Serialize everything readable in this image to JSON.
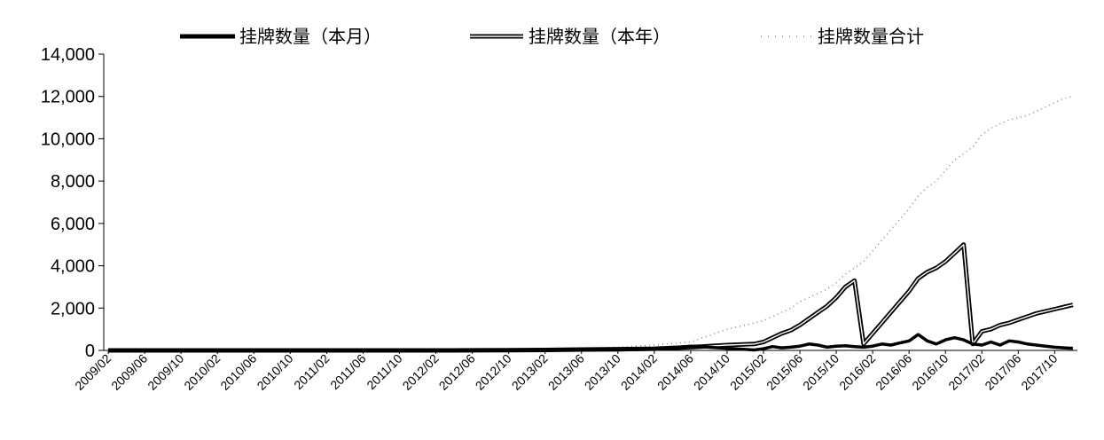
{
  "chart_data": {
    "type": "line",
    "title": "",
    "xlabel": "",
    "ylabel": "",
    "ylim": [
      0,
      14000
    ],
    "y_ticks": [
      "0",
      "2,000",
      "4,000",
      "6,000",
      "8,000",
      "10,000",
      "12,000",
      "14,000"
    ],
    "x_tick_labels": [
      "2009/02",
      "2009/06",
      "2009/10",
      "2010/02",
      "2010/06",
      "2010/10",
      "2011/02",
      "2011/06",
      "2011/10",
      "2012/02",
      "2012/06",
      "2012/10",
      "2013/02",
      "2013/06",
      "2013/10",
      "2014/02",
      "2014/06",
      "2014/10",
      "2015/02",
      "2015/06",
      "2015/10",
      "2016/02",
      "2016/06",
      "2016/10",
      "2017/02",
      "2017/06",
      "2017/10"
    ],
    "x": [
      "2009/02",
      "2009/06",
      "2009/10",
      "2010/02",
      "2010/06",
      "2010/10",
      "2011/02",
      "2011/06",
      "2011/10",
      "2012/02",
      "2012/06",
      "2012/10",
      "2013/02",
      "2013/06",
      "2013/10",
      "2014/02",
      "2014/06",
      "2014/10",
      "2015/01",
      "2015/02",
      "2015/03",
      "2015/04",
      "2015/05",
      "2015/06",
      "2015/07",
      "2015/08",
      "2015/09",
      "2015/10",
      "2015/11",
      "2015/12",
      "2016/01",
      "2016/02",
      "2016/03",
      "2016/04",
      "2016/05",
      "2016/06",
      "2016/07",
      "2016/08",
      "2016/09",
      "2016/10",
      "2016/11",
      "2016/12",
      "2017/01",
      "2017/02",
      "2017/03",
      "2017/04",
      "2017/05",
      "2017/06",
      "2017/07",
      "2017/08",
      "2017/09",
      "2017/10",
      "2017/11",
      "2017/12"
    ],
    "legend_position": "top",
    "grid": false,
    "series": [
      {
        "name": "挂牌数量（本月）",
        "style": "solid",
        "color": "#000000",
        "values": [
          0,
          0,
          0,
          0,
          0,
          0,
          0,
          0,
          0,
          0,
          5,
          10,
          15,
          20,
          20,
          60,
          200,
          100,
          20,
          80,
          180,
          120,
          150,
          200,
          300,
          250,
          150,
          200,
          220,
          180,
          150,
          200,
          300,
          250,
          350,
          450,
          750,
          450,
          300,
          500,
          600,
          500,
          300,
          250,
          400,
          250,
          450,
          400,
          300,
          250,
          200,
          150,
          120,
          100
        ]
      },
      {
        "name": "挂牌数量（本年）",
        "style": "double",
        "color": "#000000",
        "values": [
          0,
          0,
          0,
          0,
          0,
          0,
          0,
          0,
          0,
          0,
          5,
          10,
          20,
          40,
          60,
          80,
          150,
          250,
          300,
          400,
          600,
          800,
          950,
          1200,
          1500,
          1800,
          2100,
          2500,
          3000,
          3300,
          300,
          800,
          1300,
          1800,
          2300,
          2800,
          3400,
          3700,
          3900,
          4200,
          4600,
          5000,
          300,
          900,
          1000,
          1200,
          1300,
          1450,
          1600,
          1750,
          1850,
          1950,
          2050,
          2150
        ]
      },
      {
        "name": "挂牌数量合计",
        "style": "dotted",
        "color": "#888888",
        "values": [
          0,
          0,
          0,
          0,
          0,
          0,
          0,
          0,
          0,
          0,
          5,
          15,
          40,
          80,
          150,
          250,
          400,
          1000,
          1300,
          1400,
          1600,
          1800,
          2000,
          2300,
          2500,
          2700,
          2900,
          3200,
          3600,
          3900,
          4200,
          4700,
          5200,
          5700,
          6200,
          6700,
          7300,
          7700,
          8000,
          8500,
          9000,
          9300,
          9600,
          10200,
          10500,
          10700,
          10900,
          11000,
          11100,
          11300,
          11500,
          11700,
          11900,
          12000
        ]
      }
    ]
  }
}
